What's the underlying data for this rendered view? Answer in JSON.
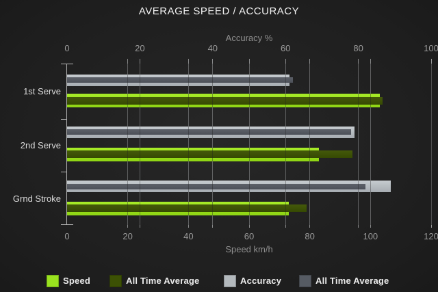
{
  "title": "AVERAGE SPEED / ACCURACY",
  "chart_data": {
    "type": "bar",
    "orientation": "horizontal",
    "style": "bullet-overlay",
    "categories": [
      "1st Serve",
      "2nd Serve",
      "Grnd Stroke"
    ],
    "series": [
      {
        "name": "Speed",
        "axis": "bottom",
        "color": "#9ae21f",
        "values": [
          103,
          83,
          73
        ]
      },
      {
        "name": "All Time Average",
        "axis": "bottom",
        "color": "#3c5104",
        "values": [
          104,
          94,
          79
        ]
      },
      {
        "name": "Accuracy",
        "axis": "top",
        "color": "#b3b9bd",
        "values": [
          61,
          79,
          89
        ]
      },
      {
        "name": "All Time Average",
        "axis": "top",
        "color": "#565b63",
        "values": [
          62,
          78,
          82
        ]
      }
    ],
    "axes": {
      "top": {
        "label": "Accuracy %",
        "min": 0,
        "max": 100,
        "ticks": [
          0,
          20,
          40,
          60,
          80,
          100
        ]
      },
      "bottom": {
        "label": "Speed km/h",
        "min": 0,
        "max": 120,
        "ticks": [
          0,
          20,
          40,
          60,
          80,
          100,
          120
        ]
      }
    },
    "grid": true,
    "legend_position": "bottom",
    "background": "#1e1e1e",
    "title": "AVERAGE SPEED / ACCURACY"
  },
  "legend": {
    "items": [
      {
        "label": "Speed",
        "color": "#9ae21f"
      },
      {
        "label": "All Time Average",
        "color": "#3c5104"
      },
      {
        "label": "Accuracy",
        "color": "#b3b9bd"
      },
      {
        "label": "All Time Average",
        "color": "#565b63"
      }
    ]
  }
}
